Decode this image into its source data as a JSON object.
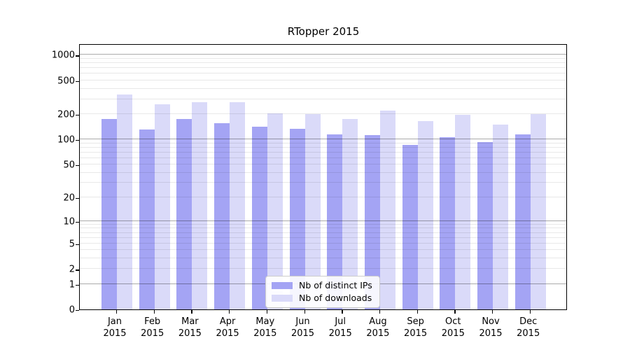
{
  "chart_data": {
    "type": "bar",
    "title": "RTopper 2015",
    "categories": [
      "Jan",
      "Feb",
      "Mar",
      "Apr",
      "May",
      "Jun",
      "Jul",
      "Aug",
      "Sep",
      "Oct",
      "Nov",
      "Dec"
    ],
    "category_year": "2015",
    "series": [
      {
        "name": "Nb of distinct IPs",
        "color": "#a4a4f4",
        "values": [
          175,
          131,
          175,
          156,
          142,
          134,
          115,
          113,
          86,
          106,
          92,
          115
        ]
      },
      {
        "name": "Nb of downloads",
        "color": "#dadaf9",
        "values": [
          340,
          261,
          276,
          276,
          205,
          198,
          175,
          219,
          164,
          195,
          151,
          198
        ]
      }
    ],
    "yscale": "log10(value+1)",
    "ytick_labels": [
      "0",
      "1",
      "2",
      "5",
      "10",
      "20",
      "50",
      "100",
      "200",
      "500",
      "1000"
    ],
    "yticks": [
      0,
      1,
      2,
      5,
      10,
      20,
      50,
      100,
      200,
      500,
      1000
    ],
    "ylim": [
      0,
      1380
    ],
    "grid": true,
    "grid_major_values": [
      1,
      10,
      100,
      1000
    ],
    "legend_position": "bottom-center",
    "colors": {
      "bar_ips": "#a4a4f4",
      "bar_downloads": "#dadaf9",
      "grid_major": "#b0b0b0",
      "grid_minor": "#e8e8e8",
      "spine": "#000000",
      "background": "#ffffff"
    }
  }
}
